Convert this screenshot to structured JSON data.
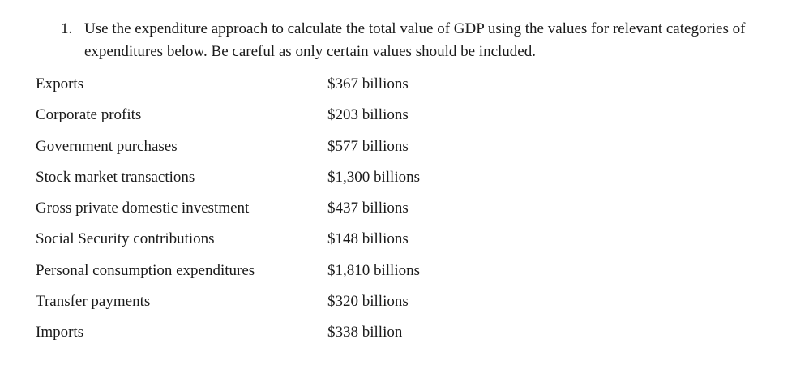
{
  "question": {
    "number": "1.",
    "text": "Use the expenditure approach to calculate the total value of GDP using the values for relevant categories of expenditures below. Be careful as only certain values should be included."
  },
  "items": [
    {
      "label": "Exports",
      "value": "$367 billions"
    },
    {
      "label": "Corporate profits",
      "value": "$203 billions"
    },
    {
      "label": "Government purchases",
      "value": "$577 billions"
    },
    {
      "label": "Stock market transactions",
      "value": "$1,300 billions"
    },
    {
      "label": "Gross private domestic investment",
      "value": "$437 billions"
    },
    {
      "label": "Social Security contributions",
      "value": "$148 billions"
    },
    {
      "label": "Personal consumption expenditures",
      "value": "$1,810 billions"
    },
    {
      "label": "Transfer payments",
      "value": "$320 billions"
    },
    {
      "label": "Imports",
      "value": "$338 billion"
    }
  ]
}
